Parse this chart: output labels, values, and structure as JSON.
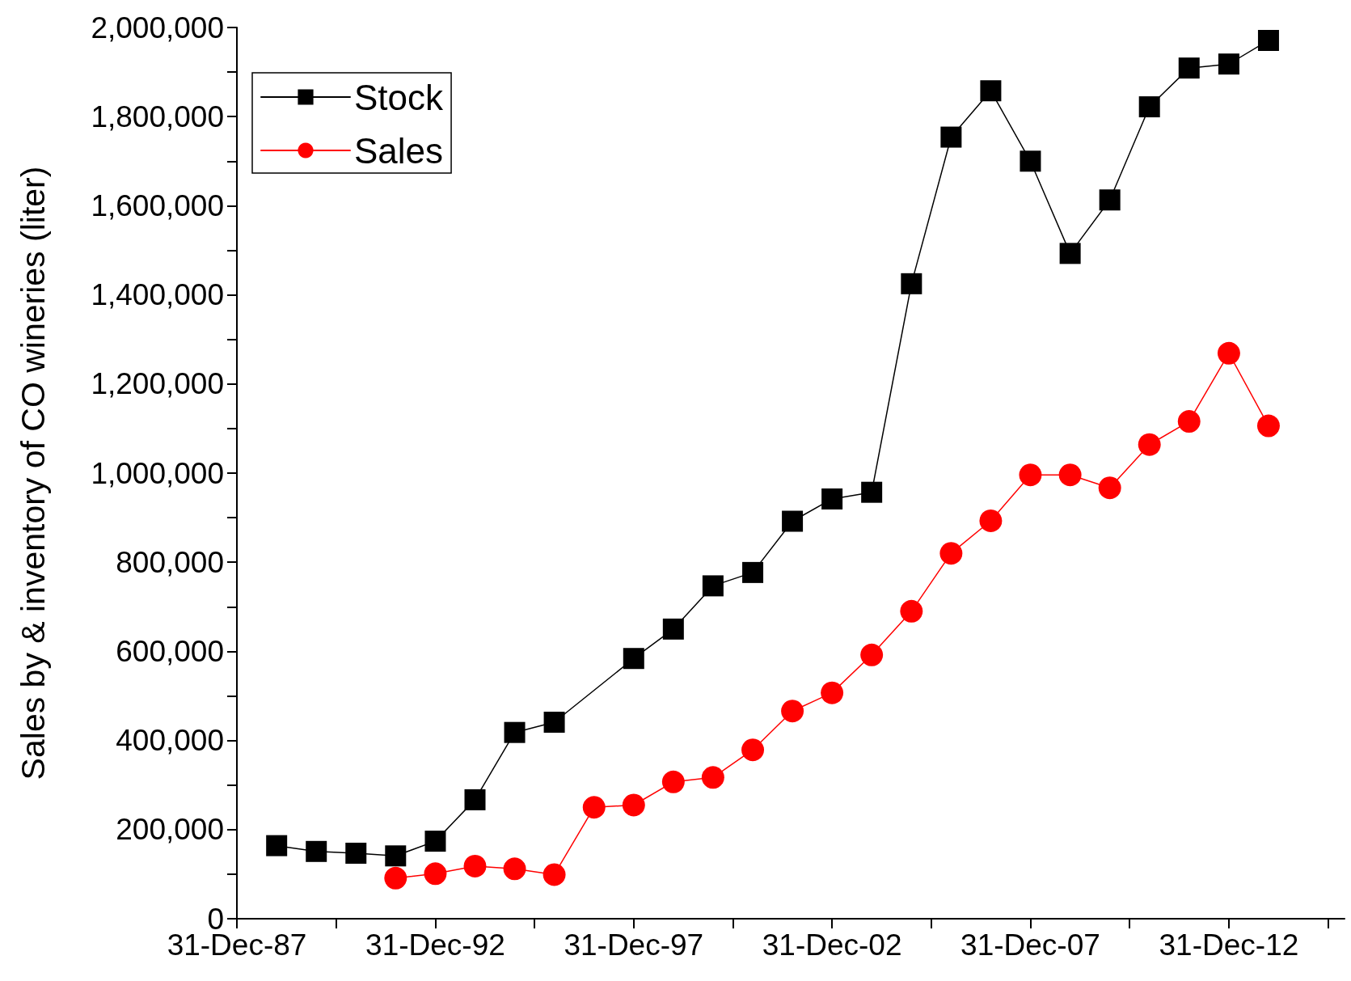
{
  "chart_data": {
    "type": "line",
    "ylabel": "Sales by & inventory of CO wineries (liter)",
    "x": [
      "1988-12-31",
      "1989-12-31",
      "1990-12-31",
      "1991-12-31",
      "1992-12-31",
      "1993-12-31",
      "1994-12-31",
      "1995-12-31",
      "1996-12-31",
      "1997-12-31",
      "1998-12-31",
      "1999-12-31",
      "2000-12-31",
      "2001-12-31",
      "2002-12-31",
      "2003-12-31",
      "2004-12-31",
      "2005-12-31",
      "2006-12-31",
      "2007-12-31",
      "2008-12-31",
      "2009-12-31",
      "2010-12-31",
      "2011-12-31",
      "2012-12-31",
      "2013-12-31"
    ],
    "series": [
      {
        "name": "Stock",
        "color": "#000000",
        "marker": "square",
        "values": [
          164000,
          151000,
          147000,
          141000,
          174000,
          267000,
          418000,
          441000,
          null,
          584000,
          650000,
          747000,
          777000,
          892000,
          942000,
          957000,
          1425000,
          1754000,
          1858000,
          1700000,
          1493000,
          1613000,
          1822000,
          1909000,
          1918000,
          1971000
        ]
      },
      {
        "name": "Sales",
        "color": "#ff0000",
        "marker": "circle",
        "values": [
          null,
          null,
          null,
          91000,
          101000,
          118000,
          112000,
          99000,
          250000,
          255000,
          307000,
          317000,
          379000,
          466000,
          507000,
          592000,
          690000,
          820000,
          893000,
          996000,
          996000,
          967000,
          1064000,
          1116000,
          1269000,
          1106000
        ]
      }
    ],
    "xlim": [
      "1987-12-31",
      "2015-12-01"
    ],
    "xticks": [
      {
        "value": "1987-12-31",
        "label": "31-Dec-87"
      },
      {
        "value": "1990-07-01",
        "label": null
      },
      {
        "value": "1992-12-31",
        "label": "31-Dec-92"
      },
      {
        "value": "1995-07-01",
        "label": null
      },
      {
        "value": "1997-12-31",
        "label": "31-Dec-97"
      },
      {
        "value": "2000-07-01",
        "label": null
      },
      {
        "value": "2002-12-31",
        "label": "31-Dec-02"
      },
      {
        "value": "2005-07-01",
        "label": null
      },
      {
        "value": "2007-12-31",
        "label": "31-Dec-07"
      },
      {
        "value": "2010-07-01",
        "label": null
      },
      {
        "value": "2012-12-31",
        "label": "31-Dec-12"
      },
      {
        "value": "2015-07-01",
        "label": null
      }
    ],
    "ylim": [
      0,
      2000000
    ],
    "yticks": [
      {
        "value": 0,
        "label": "0"
      },
      {
        "value": 100000,
        "label": null
      },
      {
        "value": 200000,
        "label": "200,000"
      },
      {
        "value": 300000,
        "label": null
      },
      {
        "value": 400000,
        "label": "400,000"
      },
      {
        "value": 500000,
        "label": null
      },
      {
        "value": 600000,
        "label": "600,000"
      },
      {
        "value": 700000,
        "label": null
      },
      {
        "value": 800000,
        "label": "800,000"
      },
      {
        "value": 900000,
        "label": null
      },
      {
        "value": 1000000,
        "label": "1,000,000"
      },
      {
        "value": 1100000,
        "label": null
      },
      {
        "value": 1200000,
        "label": "1,200,000"
      },
      {
        "value": 1300000,
        "label": null
      },
      {
        "value": 1400000,
        "label": "1,400,000"
      },
      {
        "value": 1500000,
        "label": null
      },
      {
        "value": 1600000,
        "label": "1,600,000"
      },
      {
        "value": 1700000,
        "label": null
      },
      {
        "value": 1800000,
        "label": "1,800,000"
      },
      {
        "value": 1900000,
        "label": null
      },
      {
        "value": 2000000,
        "label": "2,000,000"
      }
    ],
    "grid": false,
    "legend": "top left",
    "line_style": "solid"
  }
}
